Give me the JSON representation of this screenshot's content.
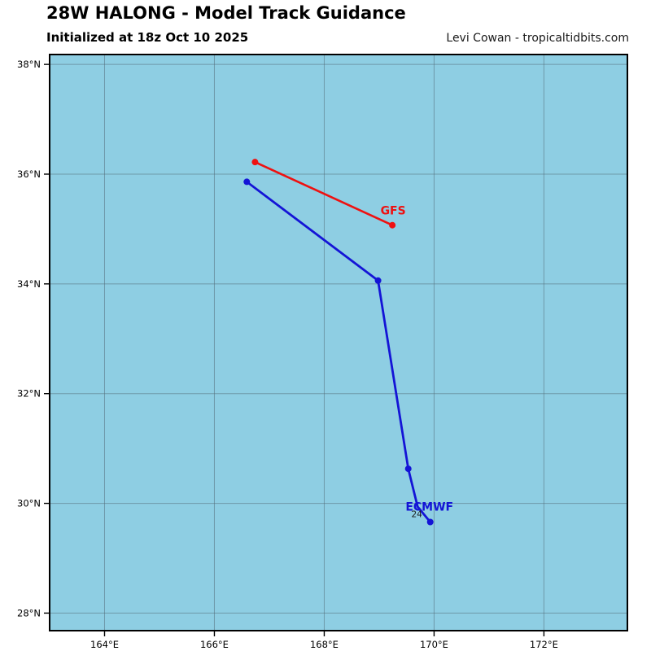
{
  "header": {
    "title": "28W HALONG - Model Track Guidance",
    "subtitle": "Initialized at 18z Oct 10 2025",
    "credit": "Levi Cowan - tropicaltidbits.com"
  },
  "chart_data": {
    "type": "line",
    "subtype": "tropical-cyclone-model-track-map",
    "title": "28W HALONG - Model Track Guidance",
    "xlabel": "",
    "ylabel": "",
    "xlim": [
      163.0,
      173.52
    ],
    "ylim": [
      27.68,
      38.18
    ],
    "grid": true,
    "x_ticks": [
      {
        "value": 164,
        "label": "164°E"
      },
      {
        "value": 166,
        "label": "166°E"
      },
      {
        "value": 168,
        "label": "168°E"
      },
      {
        "value": 170,
        "label": "170°E"
      },
      {
        "value": 172,
        "label": "172°E"
      }
    ],
    "y_ticks": [
      {
        "value": 28,
        "label": "28°N"
      },
      {
        "value": 30,
        "label": "30°N"
      },
      {
        "value": 32,
        "label": "32°N"
      },
      {
        "value": 34,
        "label": "34°N"
      },
      {
        "value": 36,
        "label": "36°N"
      },
      {
        "value": 38,
        "label": "38°N"
      }
    ],
    "map_colors": {
      "ocean": "#8ecee3",
      "grid": "#546e7a",
      "border": "#000000",
      "tick_label": "#000000"
    },
    "series": [
      {
        "name": "GFS",
        "color": "#ee1111",
        "line_width": 2.6,
        "marker_radius": 4,
        "label_offset": [
          1,
          -13
        ],
        "points": [
          {
            "lon": 166.74,
            "lat": 36.22,
            "marker": true
          },
          {
            "lon": 169.24,
            "lat": 35.07,
            "marker": true
          }
        ],
        "hour_labels": []
      },
      {
        "name": "ECMWF",
        "color": "#1414d6",
        "line_width": 2.8,
        "marker_radius": 4,
        "label_offset": [
          -1,
          -14
        ],
        "points": [
          {
            "lon": 166.59,
            "lat": 35.86,
            "marker": true
          },
          {
            "lon": 168.98,
            "lat": 34.06,
            "marker": true
          },
          {
            "lon": 169.53,
            "lat": 30.63,
            "marker": true
          },
          {
            "lon": 169.7,
            "lat": 29.94,
            "marker": false
          },
          {
            "lon": 169.93,
            "lat": 29.66,
            "marker": true
          }
        ],
        "hour_labels": [
          {
            "text": "24",
            "point_index": 3,
            "offset": [
              -1,
              13
            ],
            "color": "#1a1a1a"
          }
        ]
      }
    ]
  }
}
